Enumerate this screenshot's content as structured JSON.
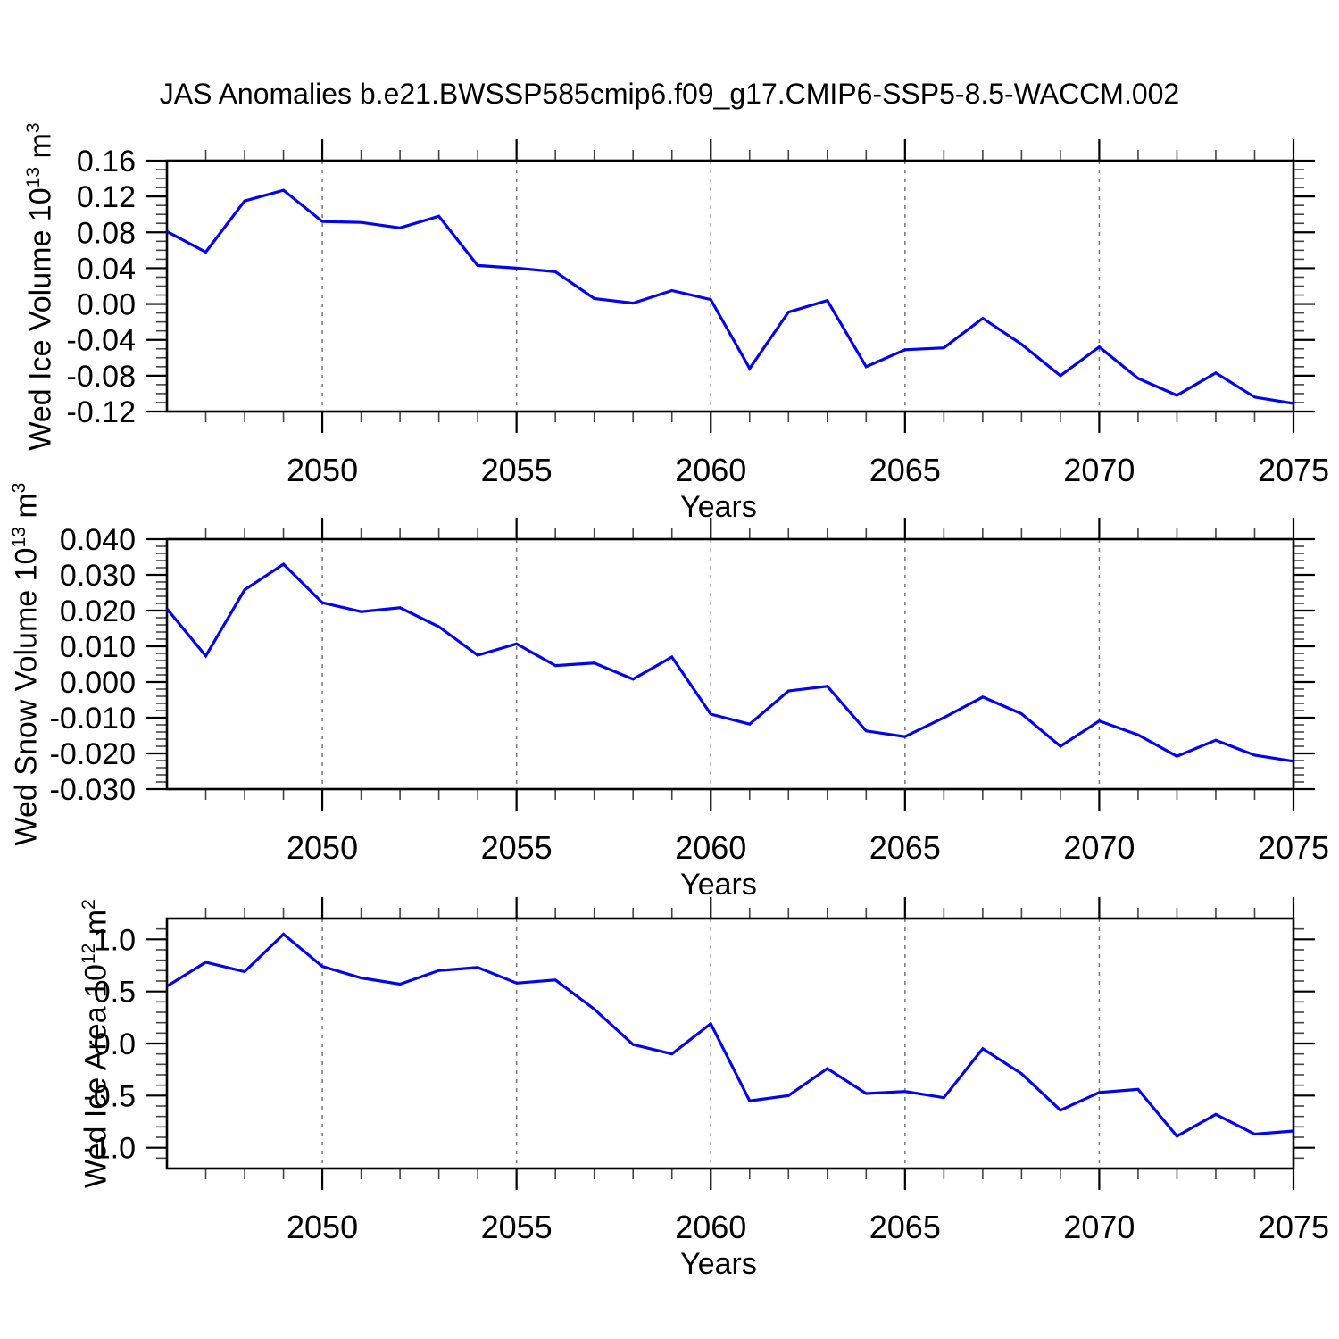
{
  "title": "JAS Anomalies b.e21.BWSSP585cmip6.f09_g17.CMIP6-SSP5-8.5-WACCM.002",
  "style": {
    "background": "#ffffff",
    "line_color": "#0404ee",
    "axis_color": "#000000",
    "minor_tick_color": "#444444",
    "gridline_color": "#777777",
    "text_color": "#000000"
  },
  "xlabel": "Years",
  "chart_data": [
    {
      "type": "line",
      "name": "wed-ice-volume",
      "ylabel_parts": [
        {
          "t": "Wed Ice Volume 10"
        },
        {
          "t": "13",
          "sup": true
        },
        {
          "t": " m"
        },
        {
          "t": "3",
          "sup": true
        }
      ],
      "xlabel": "Years",
      "x": [
        2046,
        2047,
        2048,
        2049,
        2050,
        2051,
        2052,
        2053,
        2054,
        2055,
        2056,
        2057,
        2058,
        2059,
        2060,
        2061,
        2062,
        2063,
        2064,
        2065,
        2066,
        2067,
        2068,
        2069,
        2070,
        2071,
        2072,
        2073,
        2074,
        2075
      ],
      "values": [
        0.081,
        0.058,
        0.115,
        0.127,
        0.092,
        0.091,
        0.085,
        0.098,
        0.043,
        0.04,
        0.036,
        0.006,
        0.001,
        0.015,
        0.005,
        -0.072,
        -0.009,
        0.004,
        -0.07,
        -0.051,
        -0.049,
        -0.016,
        -0.045,
        -0.08,
        -0.048,
        -0.083,
        -0.102,
        -0.077,
        -0.104,
        -0.111
      ],
      "ylim": [
        -0.12,
        0.16
      ],
      "ytick_values": [
        0.16,
        0.12,
        0.08,
        0.04,
        0.0,
        -0.04,
        -0.08,
        -0.12
      ],
      "ytick_labels": [
        "0.16",
        "0.12",
        "0.08",
        "0.04",
        "0.00",
        "-0.04",
        "-0.08",
        "-0.12"
      ],
      "yminor_step": 0.01,
      "xticks_major": [
        2050,
        2055,
        2060,
        2065,
        2070,
        2075
      ],
      "xtick_labels": [
        "2050",
        "2055",
        "2060",
        "2065",
        "2070",
        "2075"
      ],
      "xminor_step": 1,
      "gridline_years": [
        2050,
        2055,
        2060,
        2065,
        2070
      ],
      "grid": "vertical-dashed",
      "legend": "none"
    },
    {
      "type": "line",
      "name": "wed-snow-volume",
      "ylabel_parts": [
        {
          "t": "Wed Snow Volume 10"
        },
        {
          "t": "13",
          "sup": true
        },
        {
          "t": " m"
        },
        {
          "t": "3",
          "sup": true
        }
      ],
      "xlabel": "Years",
      "x": [
        2046,
        2047,
        2048,
        2049,
        2050,
        2051,
        2052,
        2053,
        2054,
        2055,
        2056,
        2057,
        2058,
        2059,
        2060,
        2061,
        2062,
        2063,
        2064,
        2065,
        2066,
        2067,
        2068,
        2069,
        2070,
        2071,
        2072,
        2073,
        2074,
        2075
      ],
      "values": [
        0.0205,
        0.0073,
        0.0258,
        0.033,
        0.0222,
        0.0197,
        0.0208,
        0.0155,
        0.0075,
        0.0107,
        0.0046,
        0.0053,
        0.0008,
        0.007,
        -0.009,
        -0.0118,
        -0.0025,
        -0.0012,
        -0.0137,
        -0.0153,
        -0.01,
        -0.0042,
        -0.0089,
        -0.018,
        -0.0109,
        -0.0148,
        -0.0208,
        -0.0163,
        -0.0205,
        -0.0222
      ],
      "ylim": [
        -0.03,
        0.04
      ],
      "ytick_values": [
        0.04,
        0.03,
        0.02,
        0.01,
        0.0,
        -0.01,
        -0.02,
        -0.03
      ],
      "ytick_labels": [
        "0.040",
        "0.030",
        "0.020",
        "0.010",
        "0.000",
        "-0.010",
        "-0.020",
        "-0.030"
      ],
      "yminor_step": 0.002,
      "xticks_major": [
        2050,
        2055,
        2060,
        2065,
        2070,
        2075
      ],
      "xtick_labels": [
        "2050",
        "2055",
        "2060",
        "2065",
        "2070",
        "2075"
      ],
      "xminor_step": 1,
      "gridline_years": [
        2050,
        2055,
        2060,
        2065,
        2070
      ],
      "grid": "vertical-dashed",
      "legend": "none"
    },
    {
      "type": "line",
      "name": "wed-ice-area",
      "ylabel_parts": [
        {
          "t": "Wed Ice Area 10"
        },
        {
          "t": "12",
          "sup": true
        },
        {
          "t": " m"
        },
        {
          "t": "2",
          "sup": true
        }
      ],
      "xlabel": "Years",
      "x": [
        2046,
        2047,
        2048,
        2049,
        2050,
        2051,
        2052,
        2053,
        2054,
        2055,
        2056,
        2057,
        2058,
        2059,
        2060,
        2061,
        2062,
        2063,
        2064,
        2065,
        2066,
        2067,
        2068,
        2069,
        2070,
        2071,
        2072,
        2073,
        2074,
        2075
      ],
      "values": [
        0.55,
        0.78,
        0.69,
        1.05,
        0.74,
        0.63,
        0.57,
        0.7,
        0.73,
        0.58,
        0.61,
        0.33,
        -0.01,
        -0.1,
        0.19,
        -0.55,
        -0.5,
        -0.24,
        -0.48,
        -0.46,
        -0.52,
        -0.05,
        -0.29,
        -0.64,
        -0.47,
        -0.44,
        -0.89,
        -0.68,
        -0.87,
        -0.84
      ],
      "ylim": [
        -1.2,
        1.2
      ],
      "ytick_values": [
        1.0,
        0.5,
        0.0,
        -0.5,
        -1.0
      ],
      "ytick_labels": [
        "1.0",
        "0.5",
        "0.0",
        "-0.5",
        "-1.0"
      ],
      "yminor_step": 0.1,
      "xticks_major": [
        2050,
        2055,
        2060,
        2065,
        2070,
        2075
      ],
      "xtick_labels": [
        "2050",
        "2055",
        "2060",
        "2065",
        "2070",
        "2075"
      ],
      "xminor_step": 1,
      "gridline_years": [
        2050,
        2055,
        2060,
        2065,
        2070
      ],
      "grid": "vertical-dashed",
      "legend": "none"
    }
  ]
}
